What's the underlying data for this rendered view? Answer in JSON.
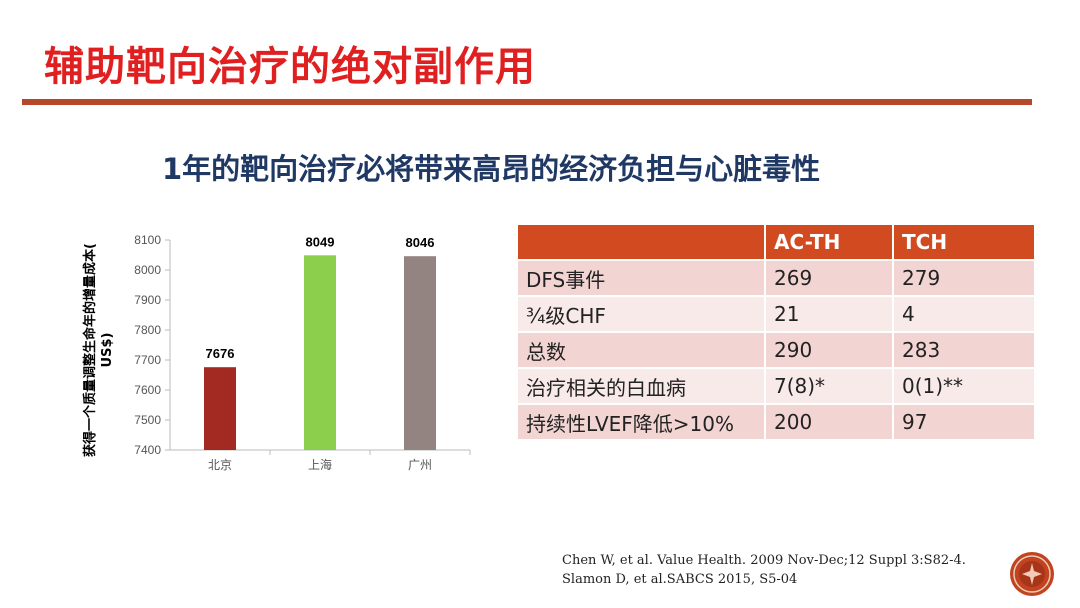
{
  "slide": {
    "title": "辅助靶向治疗的绝对副作用",
    "subtitle": "1年的靶向治疗必将带来高昂的经济负担与心脏毒性"
  },
  "chart_data": {
    "type": "bar",
    "ylabel": "获得一个质量调整生命年的增量成本(US$)",
    "categories": [
      "北京",
      "上海",
      "广州"
    ],
    "values": [
      7676,
      8049,
      8046
    ],
    "value_labels": [
      "7676",
      "8049",
      "8046"
    ],
    "colors": [
      "#a32a22",
      "#8ccf4d",
      "#938381"
    ],
    "ylim": [
      7400,
      8100
    ],
    "yticks": [
      7400,
      7500,
      7600,
      7700,
      7800,
      7900,
      8000,
      8100
    ],
    "grid": false,
    "legend": "none"
  },
  "table": {
    "headers": [
      "",
      "AC-TH",
      "TCH"
    ],
    "rows": [
      [
        "DFS事件",
        "269",
        "279"
      ],
      [
        "¾级CHF",
        "21",
        "4"
      ],
      [
        "总数",
        "290",
        "283"
      ],
      [
        "治疗相关的白血病",
        "7(8)*",
        "0(1)**"
      ],
      [
        "持续性LVEF降低>10%",
        "200",
        "97"
      ]
    ],
    "header_color": "#d24a1f",
    "row_color": "#f2d5d2",
    "row_alt_color": "#f8eae8"
  },
  "citation": {
    "line1": "Chen W, et al. Value Health. 2009 Nov-Dec;12 Suppl 3:S82-4.",
    "line2": "Slamon D, et al.SABCS 2015, S5-04"
  },
  "logo": {
    "icon": "circular-emblem-icon",
    "color": "#c0441f"
  },
  "colors": {
    "title": "#e02020",
    "subtitle": "#1f3864",
    "rule": "#b7472a"
  }
}
